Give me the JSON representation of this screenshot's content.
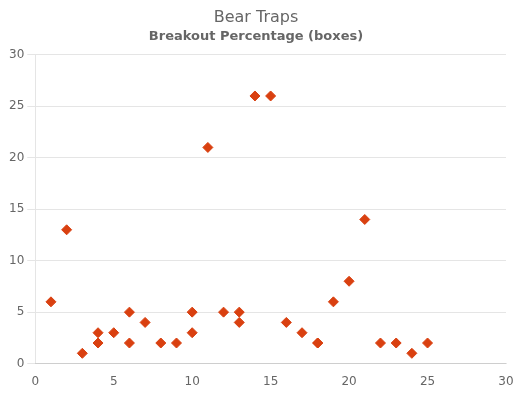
{
  "chart_data": {
    "type": "scatter",
    "title": "Bear Traps",
    "subtitle": "Breakout Percentage (boxes)",
    "x": [
      1,
      2,
      3,
      4,
      4,
      5,
      6,
      6,
      7,
      8,
      9,
      10,
      10,
      11,
      12,
      13,
      13,
      14,
      15,
      16,
      17,
      18,
      18,
      19,
      20,
      21,
      22,
      23,
      24,
      25
    ],
    "values": [
      6,
      13,
      1,
      2,
      3,
      3,
      2,
      5,
      4,
      2,
      2,
      3,
      5,
      21,
      5,
      5,
      4,
      26,
      26,
      4,
      3,
      2,
      2,
      6,
      8,
      14,
      2,
      2,
      1,
      2
    ],
    "color": "#D94010",
    "marker": "diamond",
    "xlim": [
      0,
      30
    ],
    "ylim": [
      0,
      30
    ],
    "xticks": [
      0,
      5,
      10,
      15,
      20,
      25,
      30
    ],
    "yticks": [
      0,
      5,
      10,
      15,
      20,
      25,
      30
    ],
    "grid": "y"
  }
}
